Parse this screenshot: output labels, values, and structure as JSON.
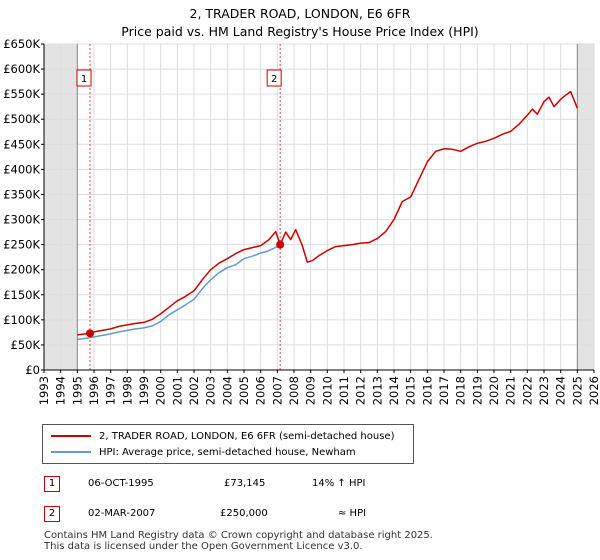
{
  "header": {
    "title": "2, TRADER ROAD, LONDON, E6 6FR",
    "subtitle": "Price paid vs. HM Land Registry's House Price Index (HPI)"
  },
  "chart_data": {
    "type": "line",
    "title": "2, TRADER ROAD, LONDON, E6 6FR",
    "subtitle": "Price paid vs. HM Land Registry's House Price Index (HPI)",
    "xlim": [
      1993,
      2026
    ],
    "ylim": [
      0,
      650000
    ],
    "x_ticks": [
      "1993",
      "1994",
      "1995",
      "1996",
      "1997",
      "1998",
      "1999",
      "2000",
      "2001",
      "2002",
      "2003",
      "2004",
      "2005",
      "2006",
      "2007",
      "2008",
      "2009",
      "2010",
      "2011",
      "2012",
      "2013",
      "2014",
      "2015",
      "2016",
      "2017",
      "2018",
      "2019",
      "2020",
      "2021",
      "2022",
      "2023",
      "2024",
      "2025",
      "2026"
    ],
    "y_ticks": [
      {
        "value": 0,
        "label": "£0"
      },
      {
        "value": 50000,
        "label": "£50K"
      },
      {
        "value": 100000,
        "label": "£100K"
      },
      {
        "value": 150000,
        "label": "£150K"
      },
      {
        "value": 200000,
        "label": "£200K"
      },
      {
        "value": 250000,
        "label": "£250K"
      },
      {
        "value": 300000,
        "label": "£300K"
      },
      {
        "value": 350000,
        "label": "£350K"
      },
      {
        "value": 400000,
        "label": "£400K"
      },
      {
        "value": 450000,
        "label": "£450K"
      },
      {
        "value": 500000,
        "label": "£500K"
      },
      {
        "value": 550000,
        "label": "£550K"
      },
      {
        "value": 600000,
        "label": "£600K"
      },
      {
        "value": 650000,
        "label": "£650K"
      }
    ],
    "shaded_ranges": [
      [
        1993,
        1995.0
      ],
      [
        2025.0,
        2026
      ]
    ],
    "series": [
      {
        "name": "2, TRADER ROAD, LONDON, E6 6FR (semi-detached house)",
        "color": "#cc0000",
        "x": [
          1995.0,
          1995.5,
          1995.76,
          1996.0,
          1996.5,
          1997.0,
          1997.5,
          1998.0,
          1998.5,
          1999.0,
          1999.5,
          2000.0,
          2000.5,
          2001.0,
          2001.5,
          2002.0,
          2002.5,
          2003.0,
          2003.5,
          2004.0,
          2004.5,
          2005.0,
          2005.5,
          2006.0,
          2006.5,
          2006.9,
          2007.17,
          2007.5,
          2007.8,
          2008.1,
          2008.5,
          2008.8,
          2009.1,
          2009.5,
          2010.0,
          2010.5,
          2011.0,
          2011.5,
          2012.0,
          2012.5,
          2013.0,
          2013.5,
          2014.0,
          2014.5,
          2015.0,
          2015.5,
          2016.0,
          2016.5,
          2017.0,
          2017.5,
          2018.0,
          2018.5,
          2019.0,
          2019.5,
          2020.0,
          2020.5,
          2021.0,
          2021.5,
          2022.0,
          2022.3,
          2022.6,
          2023.0,
          2023.3,
          2023.6,
          2024.0,
          2024.3,
          2024.6,
          2024.9,
          2025.0
        ],
        "values": [
          70000,
          72000,
          73145,
          76000,
          79000,
          82000,
          87000,
          90000,
          93000,
          95000,
          101000,
          112000,
          125000,
          138000,
          147000,
          158000,
          180000,
          200000,
          213000,
          222000,
          232000,
          240000,
          244000,
          248000,
          260000,
          276000,
          250000,
          275000,
          260000,
          280000,
          248000,
          215000,
          218000,
          228000,
          238000,
          246000,
          248000,
          250000,
          253000,
          254000,
          262000,
          276000,
          300000,
          336000,
          345000,
          380000,
          415000,
          436000,
          441000,
          440000,
          436000,
          445000,
          452000,
          456000,
          462000,
          470000,
          476000,
          490000,
          508000,
          520000,
          510000,
          535000,
          544000,
          525000,
          540000,
          548000,
          555000,
          530000,
          522000
        ]
      },
      {
        "name": "HPI: Average price, semi-detached house, Newham",
        "color": "#6699cc",
        "x": [
          1995.0,
          1995.5,
          1996.0,
          1996.5,
          1997.0,
          1997.5,
          1998.0,
          1998.5,
          1999.0,
          1999.5,
          2000.0,
          2000.5,
          2001.0,
          2001.5,
          2002.0,
          2002.5,
          2003.0,
          2003.5,
          2004.0,
          2004.5,
          2005.0,
          2005.5,
          2006.0,
          2006.5,
          2007.0,
          2007.17
        ],
        "values": [
          61000,
          63000,
          66000,
          69000,
          72000,
          76000,
          79000,
          82000,
          84000,
          88000,
          97000,
          110000,
          120000,
          130000,
          141000,
          162000,
          180000,
          194000,
          204000,
          210000,
          222000,
          227000,
          233000,
          238000,
          246000,
          250000
        ]
      }
    ],
    "transactions": [
      {
        "marker": "1",
        "x": 1995.76,
        "date": "06-OCT-1995",
        "price_label": "£73,145",
        "price": 73145,
        "hpi_note": "14% ↑ HPI"
      },
      {
        "marker": "2",
        "x": 2007.17,
        "date": "02-MAR-2007",
        "price_label": "£250,000",
        "price": 250000,
        "hpi_note": "≈ HPI"
      }
    ],
    "legend_position": "bottom"
  },
  "footer": {
    "line1": "Contains HM Land Registry data © Crown copyright and database right 2025.",
    "line2": "This data is licensed under the Open Government Licence v3.0."
  }
}
